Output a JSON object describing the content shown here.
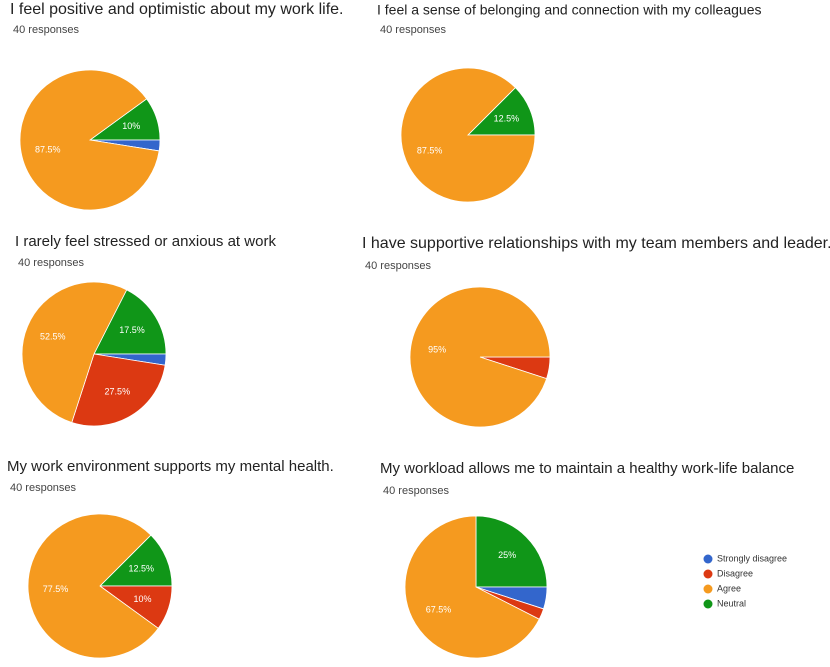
{
  "legend": {
    "labels": [
      "Strongly disagree",
      "Disagree",
      "Agree",
      "Neutral"
    ],
    "colors": [
      "#3366cc",
      "#dc3912",
      "#f59a1f",
      "#109618"
    ]
  },
  "chart_data": [
    {
      "type": "pie",
      "title": "I feel positive and optimistic about my work life.",
      "subtitle": "40 responses",
      "values": [
        2.5,
        0,
        87.5,
        10
      ],
      "value_labels": [
        null,
        null,
        "87.5%",
        "10%"
      ]
    },
    {
      "type": "pie",
      "title": "I feel a sense of belonging and connection with my colleagues",
      "subtitle": "40 responses",
      "values": [
        0,
        0,
        87.5,
        12.5
      ],
      "value_labels": [
        null,
        null,
        "87.5%",
        "12.5%"
      ]
    },
    {
      "type": "pie",
      "title": "I rarely feel stressed or anxious at work",
      "subtitle": "40 responses",
      "values": [
        2.5,
        27.5,
        52.5,
        17.5
      ],
      "value_labels": [
        null,
        "27.5%",
        "52.5%",
        "17.5%"
      ]
    },
    {
      "type": "pie",
      "title": "I have supportive relationships with my team members and leader.",
      "subtitle": "40 responses",
      "values": [
        0,
        5,
        95,
        0
      ],
      "value_labels": [
        null,
        null,
        "95%",
        null
      ]
    },
    {
      "type": "pie",
      "title": "My work environment supports my mental health.",
      "subtitle": "40 responses",
      "values": [
        0,
        10,
        77.5,
        12.5
      ],
      "value_labels": [
        null,
        "10%",
        "77.5%",
        "12.5%"
      ]
    },
    {
      "type": "pie",
      "title": "My workload allows me to maintain a healthy work-life balance",
      "subtitle": "40 responses",
      "values": [
        5,
        2.5,
        67.5,
        25
      ],
      "value_labels": [
        null,
        null,
        "67.5%",
        "25%"
      ]
    }
  ]
}
